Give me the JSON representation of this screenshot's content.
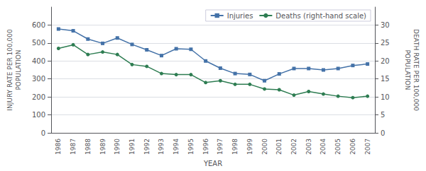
{
  "chart_data": {
    "type": "line",
    "xlabel": "YEAR",
    "ylabel": "INJURY RATE PER 100,000\nPOPULATION",
    "y2label": "DEATH RATE PER 100,000\nPOPULATION",
    "categories": [
      "1986",
      "1987",
      "1988",
      "1989",
      "1990",
      "1991",
      "1992",
      "1993",
      "1994",
      "1995",
      "1996",
      "1997",
      "1998",
      "1999",
      "2000",
      "2001",
      "2002",
      "2003",
      "2004",
      "2005",
      "2006",
      "2007"
    ],
    "series": [
      {
        "name": "Injuries",
        "color": "#4472a8",
        "marker": "square",
        "values": [
          578,
          568,
          522,
          498,
          528,
          492,
          462,
          430,
          468,
          465,
          400,
          360,
          330,
          325,
          290,
          328,
          358,
          358,
          350,
          358,
          375,
          383
        ]
      },
      {
        "name": "Deaths (right-hand scale)",
        "color": "#2e7d52",
        "marker": "circle",
        "axis": "y2",
        "values": [
          23.5,
          24.5,
          21.8,
          22.5,
          21.8,
          19.0,
          18.5,
          16.5,
          16.2,
          16.2,
          14.0,
          14.5,
          13.5,
          13.5,
          12.2,
          12.0,
          10.5,
          11.5,
          10.8,
          10.2,
          9.8,
          10.2
        ]
      }
    ],
    "ylim": [
      0,
      700
    ],
    "yticks": [
      0,
      100,
      200,
      300,
      400,
      500,
      600
    ],
    "y2lim": [
      0,
      35
    ],
    "y2ticks": [
      0,
      5,
      10,
      15,
      20,
      25,
      30
    ],
    "grid": true,
    "legend": "upper right"
  }
}
